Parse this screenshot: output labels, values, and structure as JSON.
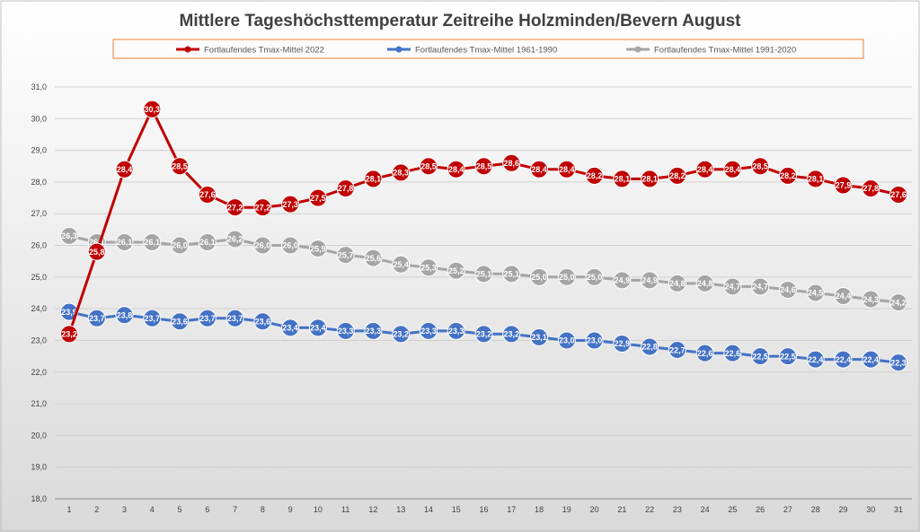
{
  "chart_data": {
    "type": "line",
    "title": "Mittlere Tageshöchsttemperatur Zeitreihe Holzminden/Bevern August",
    "xlabel": "",
    "ylabel": "",
    "ylim": [
      18.0,
      31.0
    ],
    "ytick_step": 1.0,
    "grid": true,
    "legend_position": "top",
    "categories": [
      "1",
      "2",
      "3",
      "4",
      "5",
      "6",
      "7",
      "8",
      "9",
      "10",
      "11",
      "12",
      "13",
      "14",
      "15",
      "16",
      "17",
      "18",
      "19",
      "20",
      "21",
      "22",
      "23",
      "24",
      "25",
      "26",
      "27",
      "28",
      "29",
      "30",
      "31"
    ],
    "series": [
      {
        "name": "Fortlaufendes Tmax-Mittel 2022",
        "color": "#c00000",
        "values": [
          23.2,
          25.8,
          28.4,
          30.3,
          28.5,
          27.6,
          27.2,
          27.2,
          27.3,
          27.5,
          27.8,
          28.1,
          28.3,
          28.5,
          28.4,
          28.5,
          28.6,
          28.4,
          28.4,
          28.2,
          28.1,
          28.1,
          28.2,
          28.4,
          28.4,
          28.5,
          28.2,
          28.1,
          27.9,
          27.8,
          27.6
        ]
      },
      {
        "name": "Fortlaufendes Tmax-Mittel 1961-1990",
        "color": "#4472c4",
        "values": [
          23.9,
          23.7,
          23.8,
          23.7,
          23.6,
          23.7,
          23.7,
          23.6,
          23.4,
          23.4,
          23.3,
          23.3,
          23.2,
          23.3,
          23.3,
          23.2,
          23.2,
          23.1,
          23.0,
          23.0,
          22.9,
          22.8,
          22.7,
          22.6,
          22.6,
          22.5,
          22.5,
          22.4,
          22.4,
          22.4,
          22.3
        ]
      },
      {
        "name": "Fortlaufendes Tmax-Mittel 1991-2020",
        "color": "#a5a5a5",
        "values": [
          26.3,
          26.1,
          26.1,
          26.1,
          26.0,
          26.1,
          26.2,
          26.0,
          26.0,
          25.9,
          25.7,
          25.6,
          25.4,
          25.3,
          25.2,
          25.1,
          25.1,
          25.0,
          25.0,
          25.0,
          24.9,
          24.9,
          24.8,
          24.8,
          24.7,
          24.7,
          24.6,
          24.5,
          24.4,
          24.3,
          24.2
        ]
      }
    ]
  }
}
